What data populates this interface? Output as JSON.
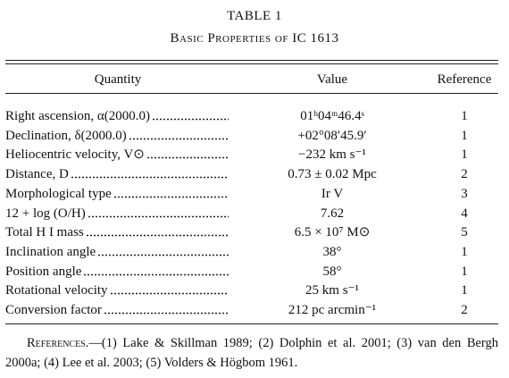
{
  "table": {
    "title": "TABLE 1",
    "caption": "Basic Properties of IC 1613",
    "headers": [
      "Quantity",
      "Value",
      "Reference"
    ],
    "rows": [
      [
        "Right ascension, α(2000.0)",
        "01ʰ04ᵐ46.4ˢ",
        "1"
      ],
      [
        "Declination, δ(2000.0)",
        "+02°08′45.9′",
        "1"
      ],
      [
        "Heliocentric velocity, V⊙",
        "−232 km s⁻¹",
        "1"
      ],
      [
        "Distance, D",
        "0.73 ± 0.02 Mpc",
        "2"
      ],
      [
        "Morphological type",
        "Ir V",
        "3"
      ],
      [
        "12 + log (O/H)",
        "7.62",
        "4"
      ],
      [
        "Total H I mass",
        "6.5 × 10⁷ M⊙",
        "5"
      ],
      [
        "Inclination angle",
        "38°",
        "1"
      ],
      [
        "Position angle",
        "58°",
        "1"
      ],
      [
        "Rotational velocity",
        "25 km s⁻¹",
        "1"
      ],
      [
        "Conversion factor",
        "212 pc arcmin⁻¹",
        "2"
      ]
    ],
    "references": {
      "label": "References.",
      "text": "—(1) Lake & Skillman 1989; (2) Dolphin et al. 2001; (3) van den Bergh 2000a; (4) Lee et al. 2003; (5) Volders & Högbom 1961."
    }
  }
}
